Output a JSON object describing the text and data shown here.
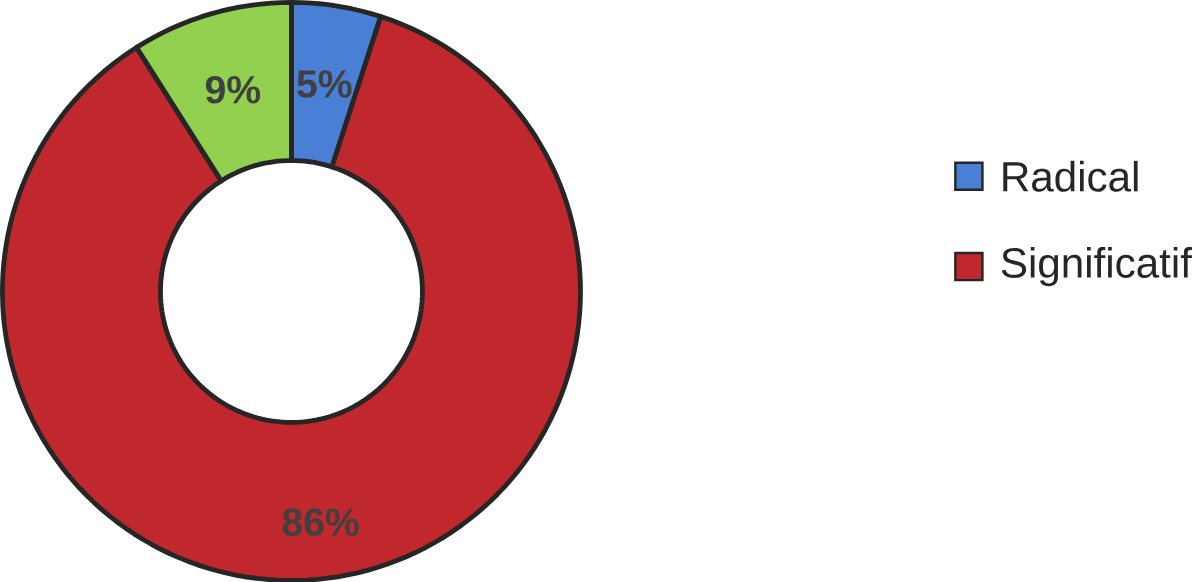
{
  "chart_data": {
    "type": "donut",
    "categories": [
      "Radical",
      "Significatif",
      null
    ],
    "values": [
      5,
      86,
      9
    ],
    "colors": [
      "#4a7fd6",
      "#c0282d",
      "#92d050"
    ],
    "value_labels": [
      "5%",
      "86%",
      "9%"
    ],
    "legend": "right"
  }
}
